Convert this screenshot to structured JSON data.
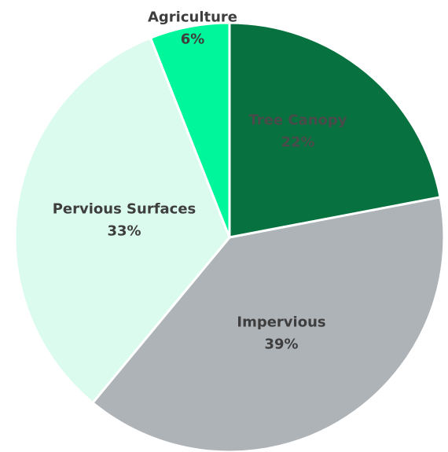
{
  "chart_data": {
    "type": "pie",
    "title": "",
    "slices": [
      {
        "label": "Tree Canopy",
        "value": 22,
        "value_label": "22%",
        "color": "#07723f",
        "text_color": "#4a4a4a"
      },
      {
        "label": "Impervious",
        "value": 39,
        "value_label": "39%",
        "color": "#aeb3b8",
        "text_color": "#3e3e3e"
      },
      {
        "label": "Pervious Surfaces",
        "value": 33,
        "value_label": "33%",
        "color": "#dcfbef",
        "text_color": "#3e3e3e"
      },
      {
        "label": "Agriculture",
        "value": 6,
        "value_label": "6%",
        "color": "#00f69a",
        "text_color": "#3e3e3e"
      }
    ],
    "start": "12 o'clock",
    "direction": "clockwise",
    "legend": "none"
  }
}
